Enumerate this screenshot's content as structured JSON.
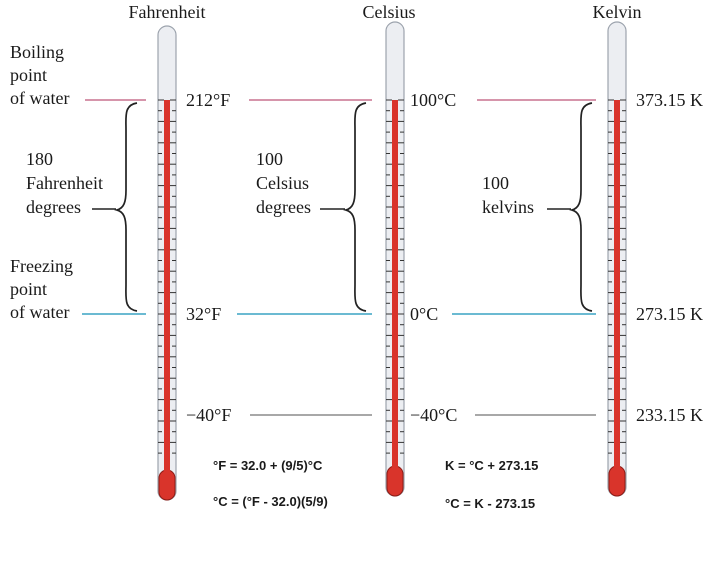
{
  "colors": {
    "boiling_line": "#c9728f",
    "freezing_line": "#3aa3c4",
    "neg40_line": "#8c8c8c",
    "mercury": "#d9342b",
    "mercury_dark": "#8e1c16",
    "glass": "#eceef2",
    "glass_edge": "#9ca3ad",
    "brace": "#222222"
  },
  "scales": {
    "fahrenheit": {
      "title": "Fahrenheit",
      "boiling": "212°F",
      "freezing": "32°F",
      "neg40": "−40°F"
    },
    "celsius": {
      "title": "Celsius",
      "boiling": "100°C",
      "freezing": "0°C",
      "neg40": "−40°C"
    },
    "kelvin": {
      "title": "Kelvin",
      "boiling": "373.15 K",
      "freezing": "273.15 K",
      "neg40": "233.15 K"
    }
  },
  "left_labels": {
    "boiling": [
      "Boiling",
      "point",
      "of water"
    ],
    "freezing": [
      "Freezing",
      "point",
      "of water"
    ]
  },
  "intervals": {
    "fahrenheit": [
      "180",
      "Fahrenheit",
      "degrees"
    ],
    "celsius": [
      "100",
      "Celsius",
      "degrees"
    ],
    "kelvin": [
      "100",
      "kelvins"
    ]
  },
  "formulas": {
    "f_from_c": "°F = 32.0 + (9/5)°C",
    "c_from_f": "°C = (°F - 32.0)(5/9)",
    "k_from_c": "K = °C + 273.15",
    "c_from_k": "°C = K - 273.15"
  }
}
